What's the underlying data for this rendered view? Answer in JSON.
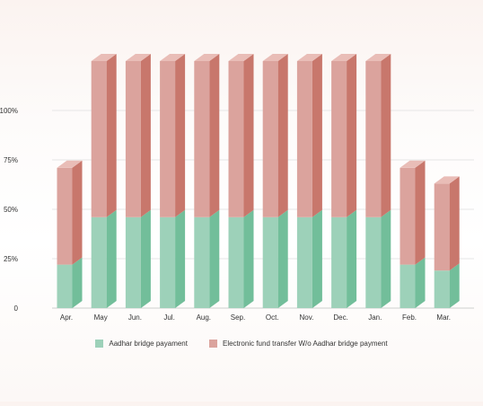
{
  "colors": {
    "aadhar_front": "#9dd1b9",
    "aadhar_side": "#72be9a",
    "aadhar_top": "#b7e0cb",
    "eft_front": "#dba39d",
    "eft_side": "#c8776c",
    "eft_top": "#e9bdb7",
    "grid": "#e6e6e6",
    "axis_text": "#333333"
  },
  "legend": {
    "aadhar_label": "Aadhar bridge payament",
    "eft_label": "Electronic fund transfer W/o Aadhar bridge payment"
  },
  "chart_data": {
    "type": "bar",
    "stacked": true,
    "three_d": true,
    "categories": [
      "Apr.",
      "May",
      "Jun.",
      "Jul.",
      "Aug.",
      "Sep.",
      "Oct.",
      "Nov.",
      "Dec.",
      "Jan.",
      "Feb.",
      "Mar."
    ],
    "series": [
      {
        "name": "Aadhar bridge payament",
        "values": [
          22,
          46,
          46,
          46,
          46,
          46,
          46,
          46,
          46,
          46,
          22,
          19
        ]
      },
      {
        "name": "Electronic fund transfer W/o Aadhar bridge payment",
        "values": [
          49,
          79,
          79,
          79,
          79,
          79,
          79,
          79,
          79,
          79,
          49,
          44
        ]
      }
    ],
    "y_ticks": [
      "0",
      "25%",
      "50%",
      "75%",
      "100%"
    ],
    "y_tick_values": [
      0,
      25,
      50,
      75,
      100
    ],
    "ylim": [
      0,
      125
    ],
    "grid": true,
    "legend_position": "bottom"
  }
}
